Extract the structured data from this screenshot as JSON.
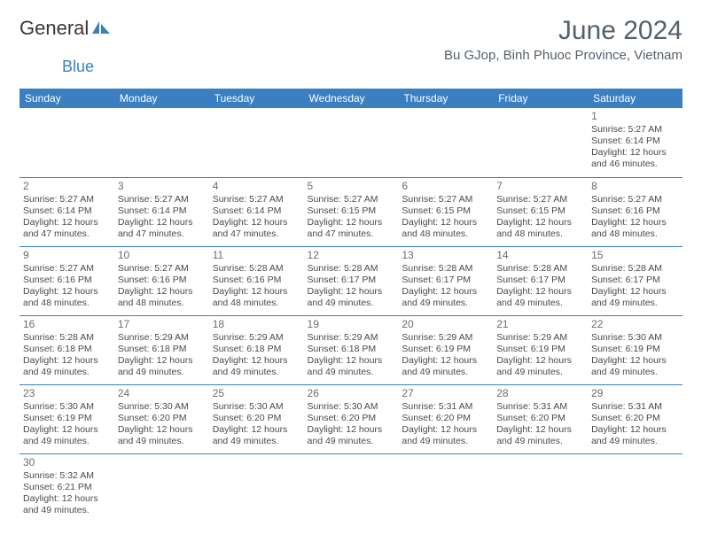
{
  "logo": {
    "text1": "General",
    "text2": "Blue"
  },
  "title": "June 2024",
  "location": "Bu GJop, Binh Phuoc Province, Vietnam",
  "weekdays": [
    "Sunday",
    "Monday",
    "Tuesday",
    "Wednesday",
    "Thursday",
    "Friday",
    "Saturday"
  ],
  "colors": {
    "header_bg": "#3a7fc2",
    "header_text": "#ffffff",
    "border": "#3a7fc2",
    "title_color": "#56606a",
    "body_text": "#4a4a4a"
  },
  "weeks": [
    [
      null,
      null,
      null,
      null,
      null,
      null,
      {
        "day": "1",
        "sunrise": "Sunrise: 5:27 AM",
        "sunset": "Sunset: 6:14 PM",
        "daylight": "Daylight: 12 hours and 46 minutes."
      }
    ],
    [
      {
        "day": "2",
        "sunrise": "Sunrise: 5:27 AM",
        "sunset": "Sunset: 6:14 PM",
        "daylight": "Daylight: 12 hours and 47 minutes."
      },
      {
        "day": "3",
        "sunrise": "Sunrise: 5:27 AM",
        "sunset": "Sunset: 6:14 PM",
        "daylight": "Daylight: 12 hours and 47 minutes."
      },
      {
        "day": "4",
        "sunrise": "Sunrise: 5:27 AM",
        "sunset": "Sunset: 6:14 PM",
        "daylight": "Daylight: 12 hours and 47 minutes."
      },
      {
        "day": "5",
        "sunrise": "Sunrise: 5:27 AM",
        "sunset": "Sunset: 6:15 PM",
        "daylight": "Daylight: 12 hours and 47 minutes."
      },
      {
        "day": "6",
        "sunrise": "Sunrise: 5:27 AM",
        "sunset": "Sunset: 6:15 PM",
        "daylight": "Daylight: 12 hours and 48 minutes."
      },
      {
        "day": "7",
        "sunrise": "Sunrise: 5:27 AM",
        "sunset": "Sunset: 6:15 PM",
        "daylight": "Daylight: 12 hours and 48 minutes."
      },
      {
        "day": "8",
        "sunrise": "Sunrise: 5:27 AM",
        "sunset": "Sunset: 6:16 PM",
        "daylight": "Daylight: 12 hours and 48 minutes."
      }
    ],
    [
      {
        "day": "9",
        "sunrise": "Sunrise: 5:27 AM",
        "sunset": "Sunset: 6:16 PM",
        "daylight": "Daylight: 12 hours and 48 minutes."
      },
      {
        "day": "10",
        "sunrise": "Sunrise: 5:27 AM",
        "sunset": "Sunset: 6:16 PM",
        "daylight": "Daylight: 12 hours and 48 minutes."
      },
      {
        "day": "11",
        "sunrise": "Sunrise: 5:28 AM",
        "sunset": "Sunset: 6:16 PM",
        "daylight": "Daylight: 12 hours and 48 minutes."
      },
      {
        "day": "12",
        "sunrise": "Sunrise: 5:28 AM",
        "sunset": "Sunset: 6:17 PM",
        "daylight": "Daylight: 12 hours and 49 minutes."
      },
      {
        "day": "13",
        "sunrise": "Sunrise: 5:28 AM",
        "sunset": "Sunset: 6:17 PM",
        "daylight": "Daylight: 12 hours and 49 minutes."
      },
      {
        "day": "14",
        "sunrise": "Sunrise: 5:28 AM",
        "sunset": "Sunset: 6:17 PM",
        "daylight": "Daylight: 12 hours and 49 minutes."
      },
      {
        "day": "15",
        "sunrise": "Sunrise: 5:28 AM",
        "sunset": "Sunset: 6:17 PM",
        "daylight": "Daylight: 12 hours and 49 minutes."
      }
    ],
    [
      {
        "day": "16",
        "sunrise": "Sunrise: 5:28 AM",
        "sunset": "Sunset: 6:18 PM",
        "daylight": "Daylight: 12 hours and 49 minutes."
      },
      {
        "day": "17",
        "sunrise": "Sunrise: 5:29 AM",
        "sunset": "Sunset: 6:18 PM",
        "daylight": "Daylight: 12 hours and 49 minutes."
      },
      {
        "day": "18",
        "sunrise": "Sunrise: 5:29 AM",
        "sunset": "Sunset: 6:18 PM",
        "daylight": "Daylight: 12 hours and 49 minutes."
      },
      {
        "day": "19",
        "sunrise": "Sunrise: 5:29 AM",
        "sunset": "Sunset: 6:18 PM",
        "daylight": "Daylight: 12 hours and 49 minutes."
      },
      {
        "day": "20",
        "sunrise": "Sunrise: 5:29 AM",
        "sunset": "Sunset: 6:19 PM",
        "daylight": "Daylight: 12 hours and 49 minutes."
      },
      {
        "day": "21",
        "sunrise": "Sunrise: 5:29 AM",
        "sunset": "Sunset: 6:19 PM",
        "daylight": "Daylight: 12 hours and 49 minutes."
      },
      {
        "day": "22",
        "sunrise": "Sunrise: 5:30 AM",
        "sunset": "Sunset: 6:19 PM",
        "daylight": "Daylight: 12 hours and 49 minutes."
      }
    ],
    [
      {
        "day": "23",
        "sunrise": "Sunrise: 5:30 AM",
        "sunset": "Sunset: 6:19 PM",
        "daylight": "Daylight: 12 hours and 49 minutes."
      },
      {
        "day": "24",
        "sunrise": "Sunrise: 5:30 AM",
        "sunset": "Sunset: 6:20 PM",
        "daylight": "Daylight: 12 hours and 49 minutes."
      },
      {
        "day": "25",
        "sunrise": "Sunrise: 5:30 AM",
        "sunset": "Sunset: 6:20 PM",
        "daylight": "Daylight: 12 hours and 49 minutes."
      },
      {
        "day": "26",
        "sunrise": "Sunrise: 5:30 AM",
        "sunset": "Sunset: 6:20 PM",
        "daylight": "Daylight: 12 hours and 49 minutes."
      },
      {
        "day": "27",
        "sunrise": "Sunrise: 5:31 AM",
        "sunset": "Sunset: 6:20 PM",
        "daylight": "Daylight: 12 hours and 49 minutes."
      },
      {
        "day": "28",
        "sunrise": "Sunrise: 5:31 AM",
        "sunset": "Sunset: 6:20 PM",
        "daylight": "Daylight: 12 hours and 49 minutes."
      },
      {
        "day": "29",
        "sunrise": "Sunrise: 5:31 AM",
        "sunset": "Sunset: 6:20 PM",
        "daylight": "Daylight: 12 hours and 49 minutes."
      }
    ],
    [
      {
        "day": "30",
        "sunrise": "Sunrise: 5:32 AM",
        "sunset": "Sunset: 6:21 PM",
        "daylight": "Daylight: 12 hours and 49 minutes."
      },
      null,
      null,
      null,
      null,
      null,
      null
    ]
  ]
}
